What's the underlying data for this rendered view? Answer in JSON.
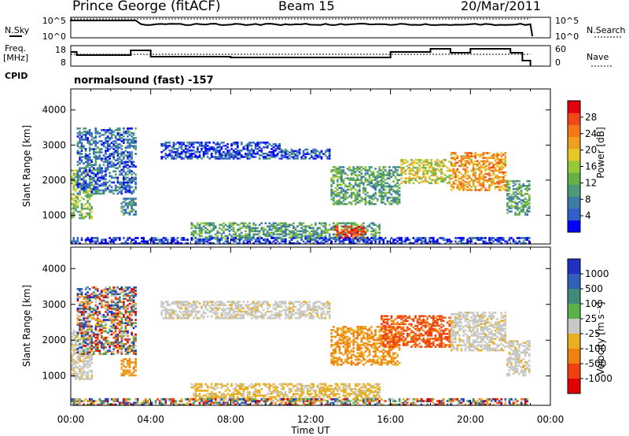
{
  "header": {
    "station": "Prince George (fitACF)",
    "beam": "Beam 15",
    "date": "20/Mar/2011"
  },
  "noise_panel": {
    "left_label": "N.Sky",
    "right_label": "N.Search",
    "left_ticks": [
      "10^5",
      "10^0"
    ],
    "right_ticks": [
      "10^5",
      "10^0"
    ]
  },
  "freq_panel": {
    "left_label_1": "Freq.",
    "left_label_2": "[MHz]",
    "left_ticks": [
      "18",
      "8"
    ],
    "right_ticks": [
      "60",
      "0"
    ],
    "right_label": "Nave"
  },
  "cpid": {
    "label": "CPID",
    "value": "normalsound (fast) -157"
  },
  "chart_data": [
    {
      "type": "heatmap",
      "name": "power",
      "ylabel": "Slant Range [km]",
      "ylim": [
        180,
        4600
      ],
      "yticks": [
        "1000",
        "2000",
        "3000",
        "4000"
      ],
      "colorbar_label": "Power [dB]",
      "colorbar_ticks": [
        "4",
        "8",
        "12",
        "16",
        "20",
        "24",
        "28"
      ],
      "colors": [
        "#0000ff",
        "#2f5fc8",
        "#3c7aa8",
        "#4d9a78",
        "#63b048",
        "#96c83c",
        "#e8c828",
        "#f0a020",
        "#f57818",
        "#f04818",
        "#e00010"
      ],
      "echo_regions": [
        {
          "t0": 0.0,
          "t1": 1.1,
          "r0": 900,
          "r1": 2300,
          "level": 0.45
        },
        {
          "t0": 0.3,
          "t1": 3.3,
          "r0": 1600,
          "r1": 3500,
          "level": 0.2
        },
        {
          "t0": 2.5,
          "t1": 3.3,
          "r0": 1000,
          "r1": 1500,
          "level": 0.3
        },
        {
          "t0": 4.5,
          "t1": 10.5,
          "r0": 2600,
          "r1": 3100,
          "level": 0.12
        },
        {
          "t0": 10.5,
          "t1": 13.0,
          "r0": 2600,
          "r1": 2900,
          "level": 0.15
        },
        {
          "t0": 13.0,
          "t1": 16.5,
          "r0": 1300,
          "r1": 2400,
          "level": 0.35
        },
        {
          "t0": 16.5,
          "t1": 19.0,
          "r0": 1900,
          "r1": 2600,
          "level": 0.55
        },
        {
          "t0": 19.0,
          "t1": 21.8,
          "r0": 1700,
          "r1": 2800,
          "level": 0.7
        },
        {
          "t0": 21.8,
          "t1": 23.0,
          "r0": 1000,
          "r1": 2000,
          "level": 0.35
        },
        {
          "t0": 6.0,
          "t1": 15.5,
          "r0": 300,
          "r1": 800,
          "level": 0.35
        },
        {
          "t0": 13.2,
          "t1": 14.8,
          "r0": 300,
          "r1": 700,
          "level": 0.9
        },
        {
          "t0": 0.0,
          "t1": 23.0,
          "r0": 180,
          "r1": 380,
          "level": 0.1
        }
      ]
    },
    {
      "type": "heatmap",
      "name": "velocity",
      "ylabel": "Slant Range [km]",
      "xlabel": "Time UT",
      "ylim": [
        180,
        4600
      ],
      "yticks": [
        "1000",
        "2000",
        "3000",
        "4000"
      ],
      "xlim": [
        0,
        24
      ],
      "xticks": [
        "00:00",
        "04:00",
        "08:00",
        "12:00",
        "16:00",
        "20:00",
        "00:00"
      ],
      "colorbar_label": "Velocity [m s⁻¹]",
      "colorbar_ticks": [
        "1000",
        "500",
        "100",
        "25",
        "-25",
        "-100",
        "-500",
        "-1000"
      ],
      "colors": [
        "#2030c0",
        "#3060b8",
        "#3f8a78",
        "#5cb048",
        "#c8c8c4",
        "#e8b020",
        "#f08010",
        "#f04010",
        "#e00000"
      ],
      "echo_regions": [
        {
          "t0": 0.0,
          "t1": 1.1,
          "r0": 900,
          "r1": 2300,
          "class": "grey"
        },
        {
          "t0": 0.3,
          "t1": 3.3,
          "r0": 1600,
          "r1": 3500,
          "class": "mixed"
        },
        {
          "t0": 2.5,
          "t1": 3.3,
          "r0": 1000,
          "r1": 1500,
          "class": "orange"
        },
        {
          "t0": 4.5,
          "t1": 13.0,
          "r0": 2600,
          "r1": 3100,
          "class": "grey"
        },
        {
          "t0": 13.0,
          "t1": 16.5,
          "r0": 1300,
          "r1": 2400,
          "class": "orange"
        },
        {
          "t0": 15.5,
          "t1": 19.0,
          "r0": 1800,
          "r1": 2700,
          "class": "red"
        },
        {
          "t0": 19.0,
          "t1": 21.8,
          "r0": 1700,
          "r1": 2800,
          "class": "grey"
        },
        {
          "t0": 21.8,
          "t1": 23.0,
          "r0": 1000,
          "r1": 2000,
          "class": "grey"
        },
        {
          "t0": 6.0,
          "t1": 15.5,
          "r0": 300,
          "r1": 800,
          "class": "yellow"
        },
        {
          "t0": 0.0,
          "t1": 23.0,
          "r0": 180,
          "r1": 380,
          "class": "mixed"
        }
      ]
    }
  ]
}
